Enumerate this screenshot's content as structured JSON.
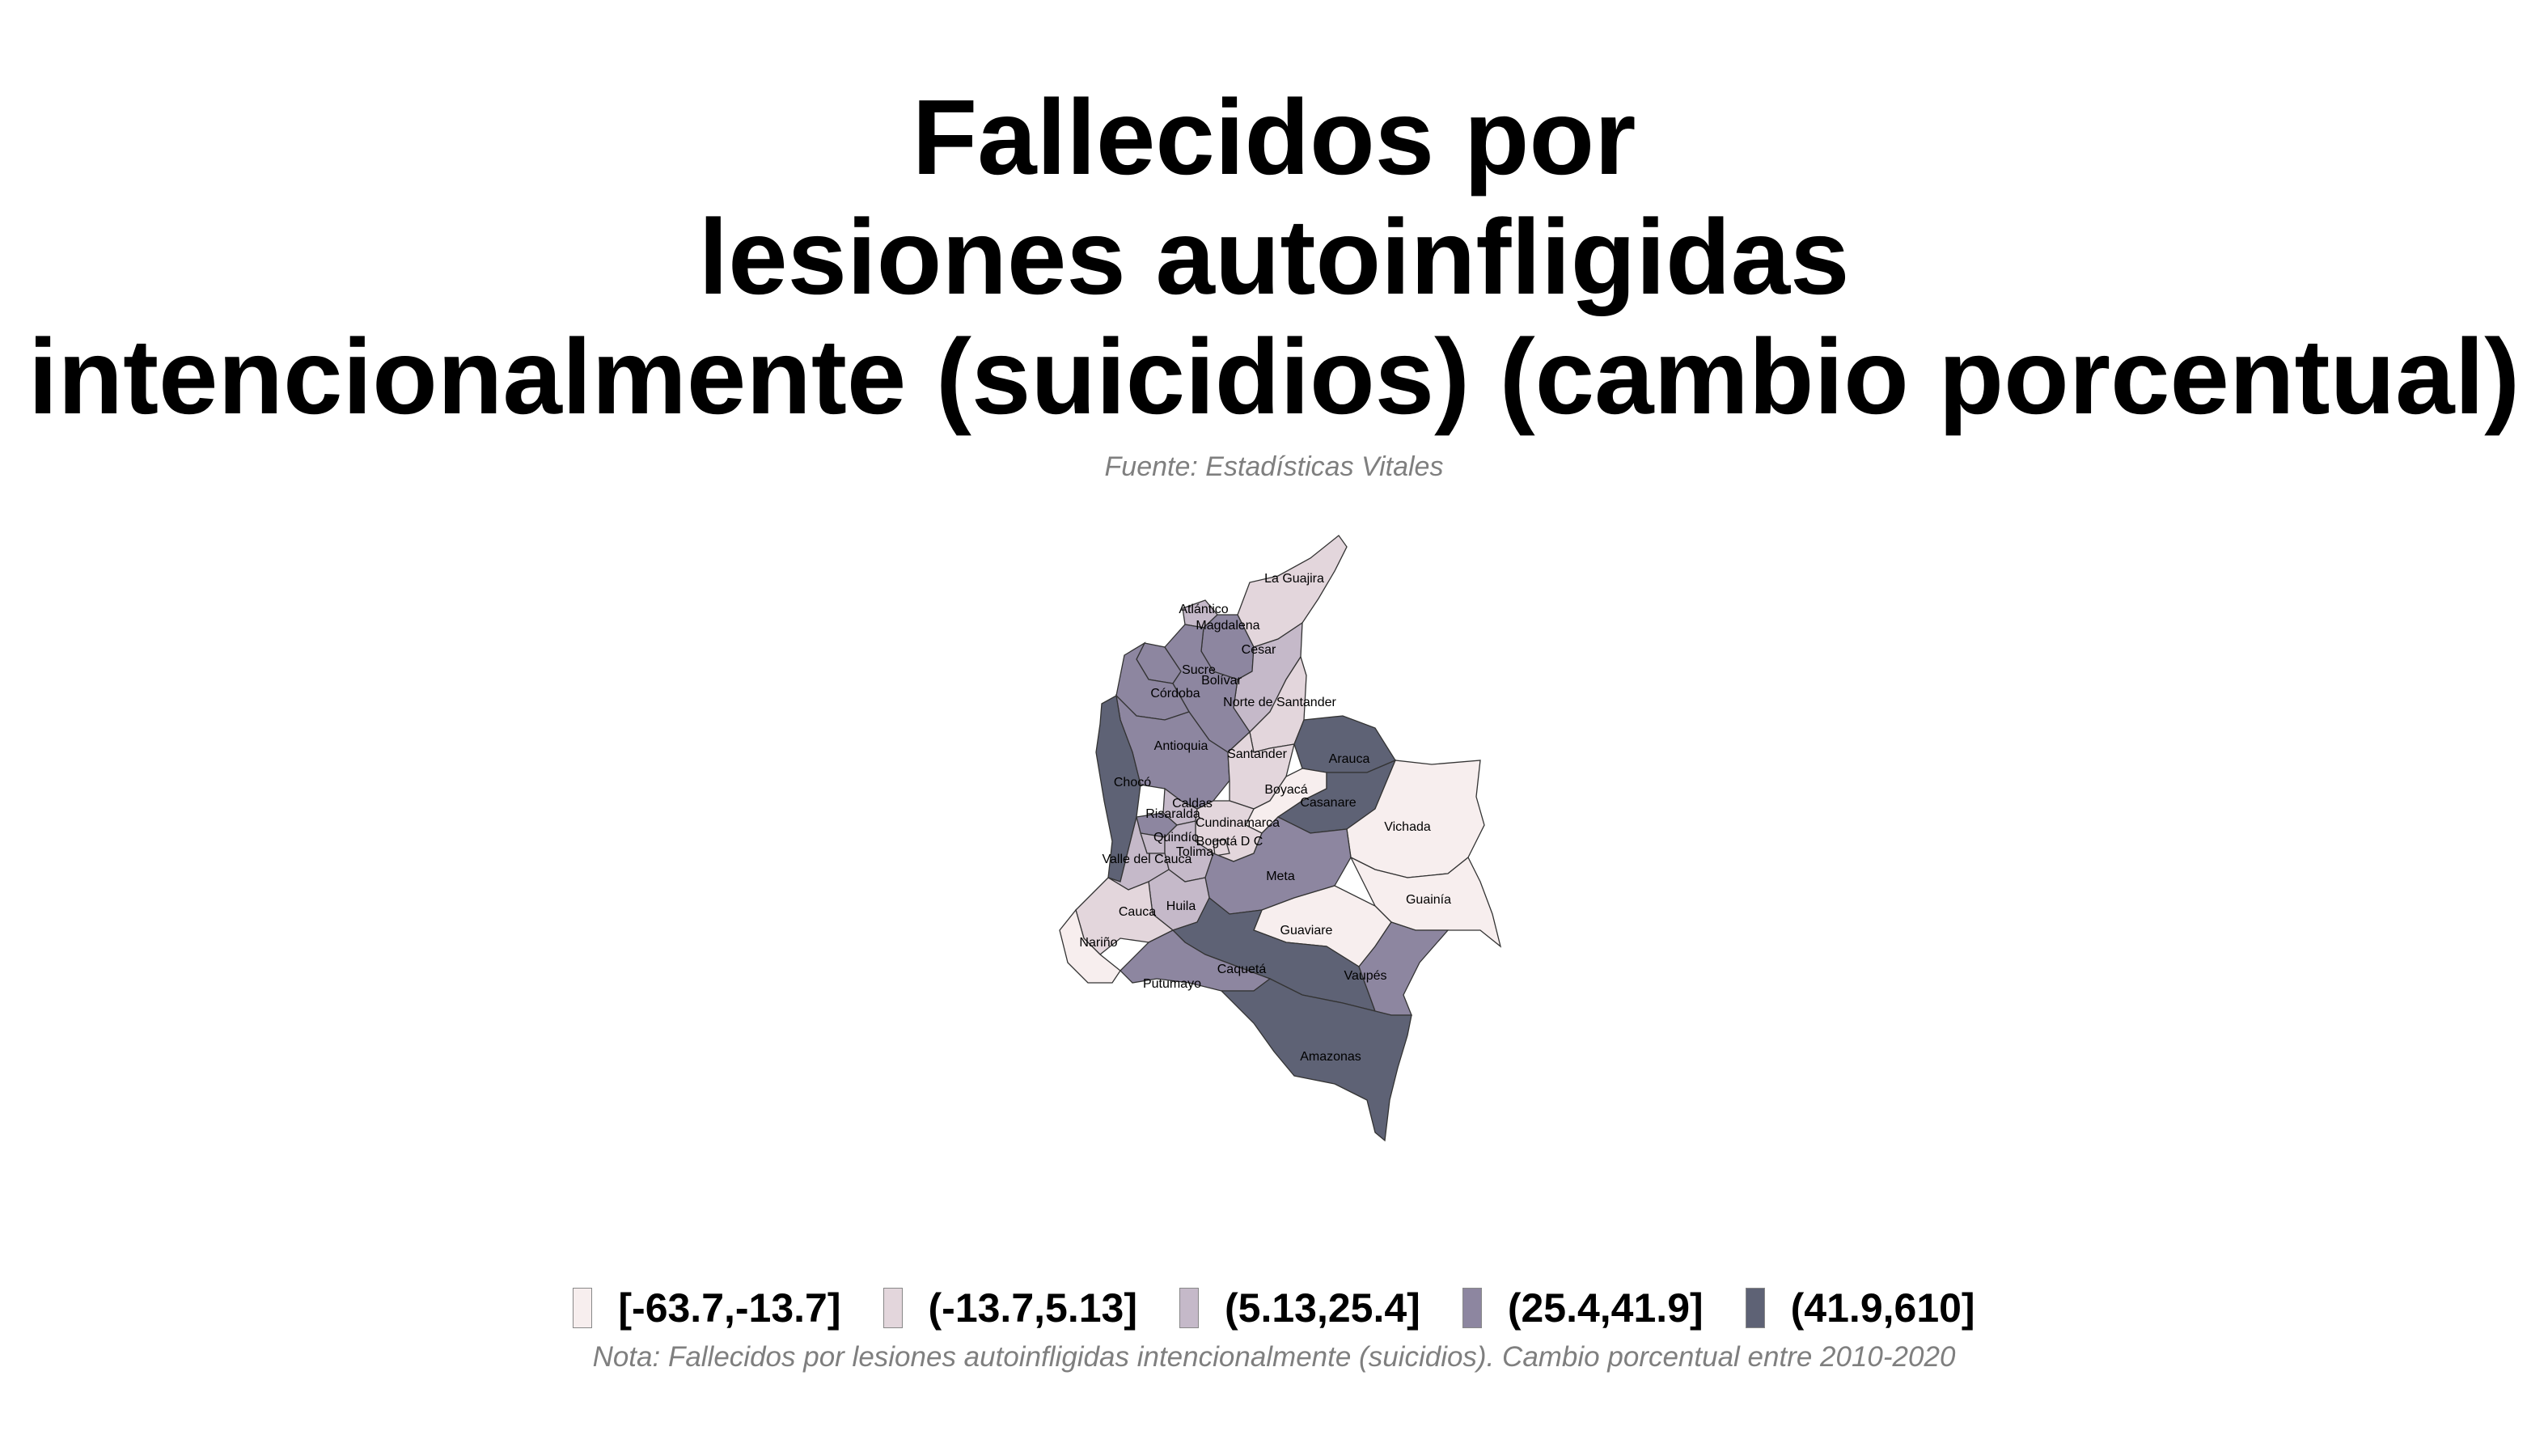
{
  "title_lines": [
    "Fallecidos por",
    "lesiones autoinfligidas",
    "intencionalmente (suicidios) (cambio porcentual)"
  ],
  "source": "Fuente: Estadísticas Vitales",
  "legend": [
    {
      "label": "[-63.7,-13.7]",
      "color": "#f7eeee"
    },
    {
      "label": "(-13.7,5.13]",
      "color": "#e3d6dc"
    },
    {
      "label": "(5.13,25.4]",
      "color": "#c5b9c9"
    },
    {
      "label": "(25.4,41.9]",
      "color": "#8d86a0"
    },
    {
      "label": "(41.9,610]",
      "color": "#5e6275"
    }
  ],
  "departments": [
    {
      "name": "La Guajira",
      "class": 1
    },
    {
      "name": "Atlántico",
      "class": 2
    },
    {
      "name": "Magdalena",
      "class": 3
    },
    {
      "name": "Cesar",
      "class": 2
    },
    {
      "name": "Sucre",
      "class": 3
    },
    {
      "name": "Bolívar",
      "class": 3
    },
    {
      "name": "Córdoba",
      "class": 3
    },
    {
      "name": "Norte de Santander",
      "class": 1
    },
    {
      "name": "Antioquia",
      "class": 3
    },
    {
      "name": "Santander",
      "class": 1
    },
    {
      "name": "Arauca",
      "class": 4
    },
    {
      "name": "Chocó",
      "class": 4
    },
    {
      "name": "Boyacá",
      "class": 0
    },
    {
      "name": "Casanare",
      "class": 4
    },
    {
      "name": "Caldas",
      "class": 2
    },
    {
      "name": "Risaralda",
      "class": 3
    },
    {
      "name": "Cundinamarca",
      "class": 1
    },
    {
      "name": "Vichada",
      "class": 0
    },
    {
      "name": "Quindío",
      "class": 2
    },
    {
      "name": "Bogotá D C",
      "class": 1
    },
    {
      "name": "Tolima",
      "class": 2
    },
    {
      "name": "Valle del Cauca",
      "class": 2
    },
    {
      "name": "Meta",
      "class": 3
    },
    {
      "name": "Huila",
      "class": 2
    },
    {
      "name": "Guainía",
      "class": 0
    },
    {
      "name": "Cauca",
      "class": 1
    },
    {
      "name": "Guaviare",
      "class": 0
    },
    {
      "name": "Nariño",
      "class": 0
    },
    {
      "name": "Caquetá",
      "class": 4
    },
    {
      "name": "Vaupés",
      "class": 3
    },
    {
      "name": "Putumayo",
      "class": 3
    },
    {
      "name": "Amazonas",
      "class": 4
    }
  ],
  "note": "Nota: Fallecidos por lesiones autoinfligidas intencionalmente (suicidios). Cambio porcentual entre 2010-2020"
}
